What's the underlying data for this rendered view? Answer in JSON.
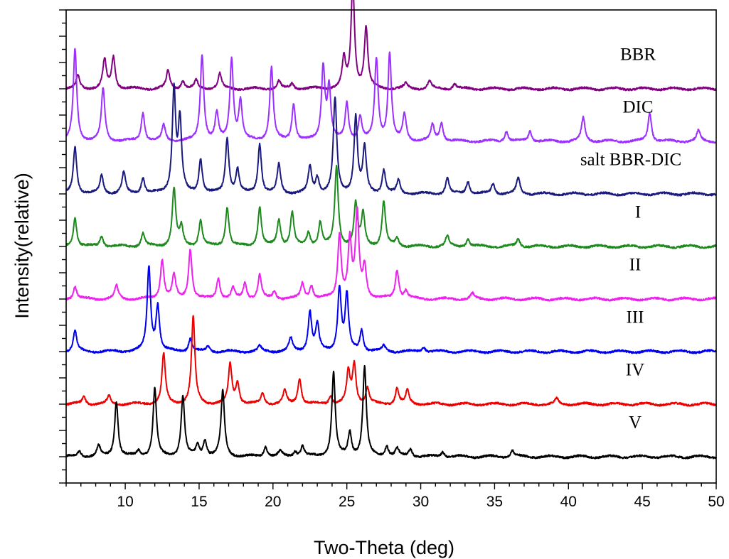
{
  "chart_data": {
    "type": "line",
    "title": "",
    "xlabel": "Two-Theta (deg)",
    "ylabel": "Intensity(relative)",
    "xlim": [
      6,
      50
    ],
    "x_ticks": [
      10,
      15,
      20,
      25,
      30,
      35,
      40,
      45,
      50
    ],
    "y_scale": "relative, traces vertically offset",
    "grid": false,
    "legend": "labels placed at right of each trace",
    "series": [
      {
        "name": "BBR",
        "color": "#800080",
        "baseline": 7.5,
        "peaks": [
          [
            6.8,
            0.25
          ],
          [
            8.6,
            0.55
          ],
          [
            9.2,
            0.6
          ],
          [
            12.9,
            0.35
          ],
          [
            13.9,
            0.15
          ],
          [
            14.8,
            0.15
          ],
          [
            16.4,
            0.3
          ],
          [
            20.4,
            0.15
          ],
          [
            21.3,
            0.1
          ],
          [
            24.8,
            0.55
          ],
          [
            25.4,
            2.0
          ],
          [
            26.3,
            1.15
          ],
          [
            29.0,
            0.1
          ],
          [
            30.6,
            0.15
          ],
          [
            32.3,
            0.1
          ]
        ]
      },
      {
        "name": "DIC",
        "color": "#9B30FF",
        "baseline": 6.5,
        "peaks": [
          [
            6.6,
            1.75
          ],
          [
            8.5,
            1.0
          ],
          [
            11.2,
            0.55
          ],
          [
            12.6,
            0.3
          ],
          [
            15.2,
            1.65
          ],
          [
            16.2,
            0.5
          ],
          [
            17.2,
            1.55
          ],
          [
            17.8,
            0.75
          ],
          [
            19.9,
            1.4
          ],
          [
            21.4,
            0.7
          ],
          [
            23.4,
            1.4
          ],
          [
            23.8,
            1.0
          ],
          [
            25.0,
            0.7
          ],
          [
            25.9,
            0.45
          ],
          [
            27.0,
            1.55
          ],
          [
            27.9,
            1.65
          ],
          [
            28.9,
            0.5
          ],
          [
            30.8,
            0.3
          ],
          [
            31.4,
            0.35
          ],
          [
            35.8,
            0.2
          ],
          [
            37.4,
            0.2
          ],
          [
            41.0,
            0.45
          ],
          [
            45.5,
            0.55
          ],
          [
            48.8,
            0.2
          ]
        ]
      },
      {
        "name": "salt BBR-DIC",
        "color": "#1A1A7E",
        "baseline": 5.5,
        "peaks": [
          [
            6.6,
            0.9
          ],
          [
            8.4,
            0.35
          ],
          [
            9.9,
            0.4
          ],
          [
            11.2,
            0.3
          ],
          [
            13.3,
            1.95
          ],
          [
            13.7,
            1.35
          ],
          [
            15.1,
            0.65
          ],
          [
            16.9,
            1.05
          ],
          [
            17.6,
            0.45
          ],
          [
            19.1,
            0.95
          ],
          [
            20.4,
            0.55
          ],
          [
            22.5,
            0.5
          ],
          [
            23.0,
            0.3
          ],
          [
            24.2,
            1.8
          ],
          [
            25.6,
            1.45
          ],
          [
            26.2,
            0.85
          ],
          [
            27.5,
            0.45
          ],
          [
            28.5,
            0.25
          ],
          [
            31.8,
            0.3
          ],
          [
            33.2,
            0.25
          ],
          [
            34.9,
            0.2
          ],
          [
            36.6,
            0.3
          ]
        ]
      },
      {
        "name": "I",
        "color": "#1E8A1E",
        "baseline": 4.5,
        "peaks": [
          [
            6.6,
            0.55
          ],
          [
            8.4,
            0.2
          ],
          [
            11.2,
            0.25
          ],
          [
            13.3,
            1.1
          ],
          [
            13.8,
            0.35
          ],
          [
            15.1,
            0.5
          ],
          [
            16.9,
            0.75
          ],
          [
            19.1,
            0.75
          ],
          [
            20.4,
            0.5
          ],
          [
            21.3,
            0.65
          ],
          [
            22.4,
            0.25
          ],
          [
            23.2,
            0.45
          ],
          [
            24.3,
            1.5
          ],
          [
            25.6,
            0.8
          ],
          [
            26.1,
            0.6
          ],
          [
            27.5,
            0.85
          ],
          [
            28.4,
            0.15
          ],
          [
            31.8,
            0.2
          ],
          [
            33.2,
            0.15
          ],
          [
            36.6,
            0.15
          ]
        ]
      },
      {
        "name": "II",
        "color": "#EE22EE",
        "baseline": 3.5,
        "peaks": [
          [
            6.6,
            0.25
          ],
          [
            9.4,
            0.25
          ],
          [
            12.5,
            0.75
          ],
          [
            13.3,
            0.45
          ],
          [
            14.4,
            0.95
          ],
          [
            16.3,
            0.4
          ],
          [
            17.3,
            0.2
          ],
          [
            18.1,
            0.3
          ],
          [
            19.1,
            0.45
          ],
          [
            20.1,
            0.15
          ],
          [
            22.0,
            0.3
          ],
          [
            22.6,
            0.25
          ],
          [
            24.5,
            1.2
          ],
          [
            25.2,
            1.1
          ],
          [
            25.7,
            1.6
          ],
          [
            26.2,
            0.6
          ],
          [
            28.4,
            0.55
          ],
          [
            29.0,
            0.15
          ],
          [
            33.5,
            0.1
          ]
        ]
      },
      {
        "name": "III",
        "color": "#0000EE",
        "baseline": 2.5,
        "peaks": [
          [
            6.6,
            0.4
          ],
          [
            11.6,
            1.6
          ],
          [
            12.2,
            0.85
          ],
          [
            14.4,
            0.25
          ],
          [
            15.6,
            0.1
          ],
          [
            19.1,
            0.1
          ],
          [
            21.2,
            0.25
          ],
          [
            22.5,
            0.75
          ],
          [
            23.0,
            0.5
          ],
          [
            24.5,
            1.2
          ],
          [
            25.0,
            1.05
          ],
          [
            26.0,
            0.4
          ],
          [
            27.5,
            0.1
          ],
          [
            30.2,
            0.1
          ]
        ]
      },
      {
        "name": "IV",
        "color": "#EE0000",
        "baseline": 1.5,
        "peaks": [
          [
            7.2,
            0.15
          ],
          [
            8.9,
            0.15
          ],
          [
            12.6,
            0.95
          ],
          [
            14.6,
            1.65
          ],
          [
            17.1,
            0.75
          ],
          [
            17.6,
            0.4
          ],
          [
            19.3,
            0.2
          ],
          [
            20.8,
            0.25
          ],
          [
            21.8,
            0.5
          ],
          [
            23.9,
            0.15
          ],
          [
            25.1,
            0.6
          ],
          [
            25.5,
            0.75
          ],
          [
            26.4,
            0.3
          ],
          [
            28.4,
            0.3
          ],
          [
            29.1,
            0.25
          ],
          [
            39.2,
            0.1
          ]
        ]
      },
      {
        "name": "V",
        "color": "#000000",
        "baseline": 0.5,
        "peaks": [
          [
            6.9,
            0.1
          ],
          [
            8.2,
            0.2
          ],
          [
            9.4,
            1.05
          ],
          [
            10.9,
            0.1
          ],
          [
            12.0,
            1.3
          ],
          [
            13.9,
            1.15
          ],
          [
            14.9,
            0.2
          ],
          [
            15.4,
            0.3
          ],
          [
            16.6,
            1.25
          ],
          [
            19.5,
            0.2
          ],
          [
            20.5,
            0.1
          ],
          [
            21.5,
            0.1
          ],
          [
            22.0,
            0.2
          ],
          [
            24.1,
            1.6
          ],
          [
            25.2,
            0.45
          ],
          [
            26.2,
            1.7
          ],
          [
            27.7,
            0.2
          ],
          [
            28.4,
            0.15
          ],
          [
            29.3,
            0.15
          ],
          [
            31.5,
            0.1
          ],
          [
            36.2,
            0.12
          ]
        ]
      }
    ]
  }
}
